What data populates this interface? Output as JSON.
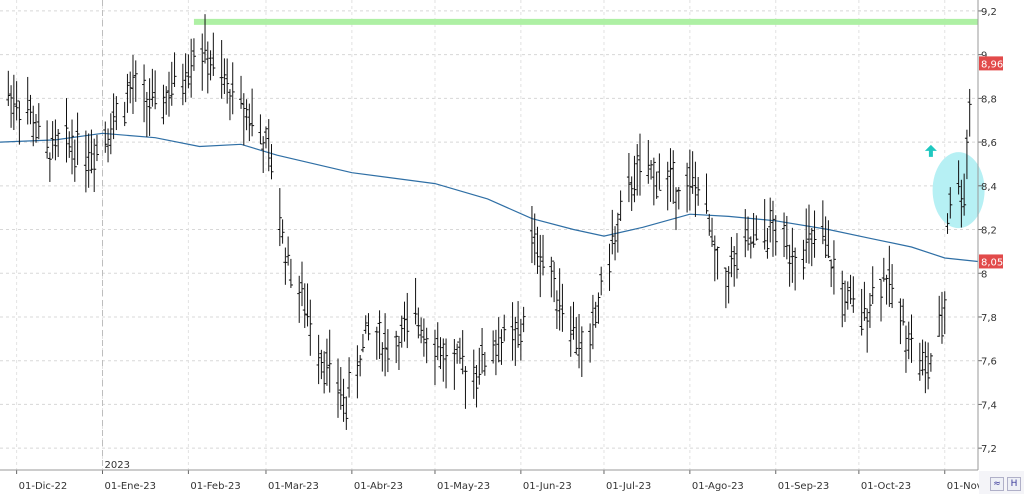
{
  "chart_data": {
    "type": "ohlc",
    "title": "",
    "xlabel": "",
    "ylabel": "",
    "ylim": [
      7.1,
      9.25
    ],
    "y_ticks": [
      "7,2",
      "7,4",
      "7,6",
      "7,8",
      "8",
      "8,2",
      "8,4",
      "8,6",
      "8,8",
      "9",
      "9,2"
    ],
    "y_tick_values": [
      7.2,
      7.4,
      7.6,
      7.8,
      8.0,
      8.2,
      8.4,
      8.6,
      8.8,
      9.0,
      9.2
    ],
    "x_ticks": [
      "01-Dic-22",
      "01-Ene-23",
      "01-Feb-23",
      "01-Mar-23",
      "01-Abr-23",
      "01-May-23",
      "01-Jun-23",
      "01-Jul-23",
      "01-Ago-23",
      "01-Sep-23",
      "01-Oct-23",
      "01-Nov-23"
    ],
    "x_tick_dates": [
      "2022-12-01",
      "2023-01-01",
      "2023-02-01",
      "2023-03-01",
      "2023-04-01",
      "2023-05-01",
      "2023-06-01",
      "2023-07-01",
      "2023-08-01",
      "2023-09-01",
      "2023-10-01",
      "2023-11-01"
    ],
    "x_range": [
      "2022-11-25",
      "2023-11-13"
    ],
    "year_marker": {
      "label": "2023",
      "date": "2023-01-01"
    },
    "grid": true,
    "price_keypoints": [
      [
        "2022-11-25",
        8.85
      ],
      [
        "2022-12-05",
        8.75
      ],
      [
        "2022-12-12",
        8.55
      ],
      [
        "2022-12-20",
        8.6
      ],
      [
        "2022-12-28",
        8.55
      ],
      [
        "2023-01-05",
        8.7
      ],
      [
        "2023-01-12",
        8.85
      ],
      [
        "2023-01-20",
        8.75
      ],
      [
        "2023-01-30",
        8.9
      ],
      [
        "2023-02-04",
        9.05
      ],
      [
        "2023-02-15",
        8.85
      ],
      [
        "2023-02-25",
        8.7
      ],
      [
        "2023-03-03",
        8.5
      ],
      [
        "2023-03-08",
        8.1
      ],
      [
        "2023-03-15",
        7.85
      ],
      [
        "2023-03-22",
        7.6
      ],
      [
        "2023-03-30",
        7.4
      ],
      [
        "2023-04-07",
        7.75
      ],
      [
        "2023-04-15",
        7.65
      ],
      [
        "2023-04-25",
        7.8
      ],
      [
        "2023-05-05",
        7.6
      ],
      [
        "2023-05-15",
        7.55
      ],
      [
        "2023-05-25",
        7.7
      ],
      [
        "2023-06-01",
        7.7
      ],
      [
        "2023-06-05",
        8.15
      ],
      [
        "2023-06-10",
        8.05
      ],
      [
        "2023-06-18",
        7.8
      ],
      [
        "2023-06-25",
        7.6
      ],
      [
        "2023-07-01",
        8.0
      ],
      [
        "2023-07-06",
        8.2
      ],
      [
        "2023-07-12",
        8.45
      ],
      [
        "2023-07-20",
        8.45
      ],
      [
        "2023-07-28",
        8.4
      ],
      [
        "2023-08-05",
        8.4
      ],
      [
        "2023-08-12",
        7.95
      ],
      [
        "2023-08-20",
        8.1
      ],
      [
        "2023-08-30",
        8.2
      ],
      [
        "2023-09-08",
        8.1
      ],
      [
        "2023-09-18",
        8.15
      ],
      [
        "2023-09-25",
        7.9
      ],
      [
        "2023-10-02",
        7.8
      ],
      [
        "2023-10-10",
        8.0
      ],
      [
        "2023-10-18",
        7.75
      ],
      [
        "2023-10-25",
        7.55
      ],
      [
        "2023-10-29",
        7.65
      ],
      [
        "2023-11-01",
        7.85
      ],
      [
        "2023-11-02",
        8.25
      ],
      [
        "2023-11-04",
        8.45
      ],
      [
        "2023-11-08",
        8.35
      ],
      [
        "2023-11-10",
        8.8
      ],
      [
        "2023-11-12",
        8.96
      ]
    ],
    "series": [
      {
        "type": "line",
        "color": "#2f6fa5",
        "points": [
          [
            "2022-11-25",
            8.6
          ],
          [
            "2022-12-15",
            8.61
          ],
          [
            "2023-01-01",
            8.64
          ],
          [
            "2023-01-20",
            8.62
          ],
          [
            "2023-02-05",
            8.58
          ],
          [
            "2023-02-20",
            8.59
          ],
          [
            "2023-03-05",
            8.54
          ],
          [
            "2023-04-01",
            8.46
          ],
          [
            "2023-05-01",
            8.41
          ],
          [
            "2023-05-20",
            8.34
          ],
          [
            "2023-06-05",
            8.25
          ],
          [
            "2023-06-20",
            8.2
          ],
          [
            "2023-07-01",
            8.17
          ],
          [
            "2023-07-15",
            8.21
          ],
          [
            "2023-08-01",
            8.27
          ],
          [
            "2023-08-15",
            8.26
          ],
          [
            "2023-09-01",
            8.24
          ],
          [
            "2023-09-20",
            8.2
          ],
          [
            "2023-10-05",
            8.16
          ],
          [
            "2023-10-20",
            8.12
          ],
          [
            "2023-11-01",
            8.07
          ],
          [
            "2023-11-13",
            8.054
          ]
        ]
      }
    ],
    "resistance_line": {
      "value": 9.15,
      "from": "2023-02-03",
      "to": "2023-11-13",
      "color": "#aef0a4"
    },
    "highlight_ellipse": {
      "center_date": "2023-11-06",
      "center_value": 8.38,
      "color": "#b6f0f4"
    },
    "arrow_marker": {
      "date": "2023-10-27",
      "value": 8.56,
      "direction": "up",
      "color": "#1fc8c0"
    },
    "price_badge": {
      "value": 8.96,
      "label": "8,96",
      "color": "#e24a4a"
    },
    "ma_badge": {
      "value": 8.054,
      "label": "8,054",
      "color": "#e24a4a"
    }
  },
  "corner_buttons": [
    {
      "icon": "wave-icon",
      "glyph": "≈"
    },
    {
      "icon": "h-icon",
      "glyph": "H"
    }
  ]
}
